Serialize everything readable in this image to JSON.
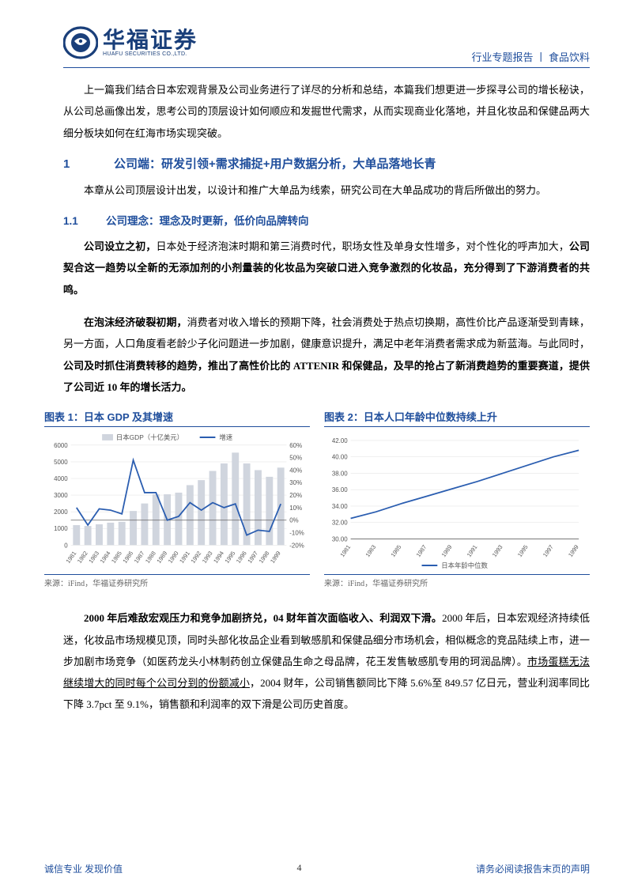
{
  "header": {
    "logo_cn": "华福证券",
    "logo_en": "HUAFU SECURITIES CO.,LTD.",
    "right": "行业专题报告 丨 食品饮料"
  },
  "intro": "上一篇我们结合日本宏观背景及公司业务进行了详尽的分析和总结，本篇我们想更进一步探寻公司的增长秘诀，从公司总画像出发，思考公司的顶层设计如何顺应和发掘世代需求，从而实现商业化落地，并且化妆品和保健品两大细分板块如何在红海市场实现突破。",
  "s1": {
    "num": "1",
    "title": "公司端：研发引领+需求捕捉+用户数据分析，大单品落地长青",
    "lead": "本章从公司顶层设计出发，以设计和推广大单品为线索，研究公司在大单品成功的背后所做出的努力。"
  },
  "s11": {
    "num": "1.1",
    "title": "公司理念：理念及时更新，低价向品牌转向",
    "p1a": "公司设立之初，",
    "p1b": "日本处于经济泡沫时期和第三消费时代，职场女性及单身女性增多，对个性化的呼声加大，",
    "p1c": "公司契合这一趋势以全新的无添加剂的小剂量装的化妆品为突破口进入竞争激烈的化妆品，充分得到了下游消费者的共鸣。",
    "p2a": "在泡沫经济破裂初期，",
    "p2b": "消费者对收入增长的预期下降，社会消费处于热点切换期，高性价比产品逐渐受到青睐，另一方面，人口角度看老龄少子化问题进一步加剧，健康意识提升，满足中老年消费者需求成为新蓝海。与此同时，",
    "p2c": "公司及时抓住消费转移的趋势，推出了高性价比的 ATTENIR 和保健品，及早的抢占了新消费趋势的重要赛道，提供了公司近 10 年的增长活力。"
  },
  "chart1": {
    "title": "图表 1：日本 GDP 及其增速",
    "legend_bar": "日本GDP（十亿美元）",
    "legend_line": "增速",
    "source": "来源：iFind，华福证券研究所",
    "years": [
      "1981",
      "1982",
      "1983",
      "1984",
      "1985",
      "1986",
      "1987",
      "1988",
      "1989",
      "1990",
      "1991",
      "1992",
      "1993",
      "1994",
      "1995",
      "1996",
      "1997",
      "1998",
      "1999"
    ],
    "gdp": [
      1200,
      1150,
      1250,
      1350,
      1400,
      2050,
      2500,
      3050,
      3050,
      3150,
      3600,
      3900,
      4450,
      4900,
      5550,
      4900,
      4500,
      4100,
      4650
    ],
    "growth": [
      10,
      -4,
      9,
      8,
      5,
      48,
      22,
      22,
      0,
      3,
      14,
      8,
      14,
      10,
      13,
      -12,
      -8,
      -9,
      13
    ],
    "y_left": {
      "min": 0,
      "max": 6000,
      "step": 1000
    },
    "y_right": {
      "min": -20,
      "max": 60,
      "step": 10
    },
    "bar_color": "#d0d5de",
    "line_color": "#2a5db0",
    "grid_color": "#e6e6e6",
    "axis_color": "#666666",
    "label_fontsize": 8
  },
  "chart2": {
    "title": "图表 2：日本人口年龄中位数持续上升",
    "legend": "日本年龄中位数",
    "source": "来源：iFind，华福证券研究所",
    "years": [
      "1981",
      "1983",
      "1985",
      "1987",
      "1989",
      "1991",
      "1993",
      "1995",
      "1997",
      "1999"
    ],
    "values": [
      32.5,
      33.3,
      34.3,
      35.2,
      36.1,
      37.0,
      38.0,
      39.0,
      40.0,
      40.8
    ],
    "y": {
      "min": 30,
      "max": 42,
      "step": 2
    },
    "line_color": "#2a5db0",
    "grid_color": "#e6e6e6",
    "axis_color": "#666666",
    "label_fontsize": 8
  },
  "p2000a": "2000 年后难敌宏观压力和竞争加剧挤兑，04 财年首次面临收入、利润双下滑。",
  "p2000b": "2000 年后，日本宏观经济持续低迷，化妆品市场规模见顶，同时头部化妆品企业看到敏感肌和保健品细分市场机会，相似概念的竞品陆续上市，进一步加剧市场竞争（如医药龙头小林制药创立保健品生命之母品牌，花王发售敏感肌专用的珂润品牌）。",
  "p2000c": "市场蛋糕无法继续增大的同时每个公司分到的份额减小",
  "p2000d": "，2004 财年，公司销售额同比下降 5.6%至 849.57 亿日元，营业利润率同比下降 3.7pct 至 9.1%，销售额和利润率的双下滑是公司历史首度。",
  "footer": {
    "left": "诚信专业  发现价值",
    "page": "4",
    "right": "请务必阅读报告末页的声明"
  }
}
